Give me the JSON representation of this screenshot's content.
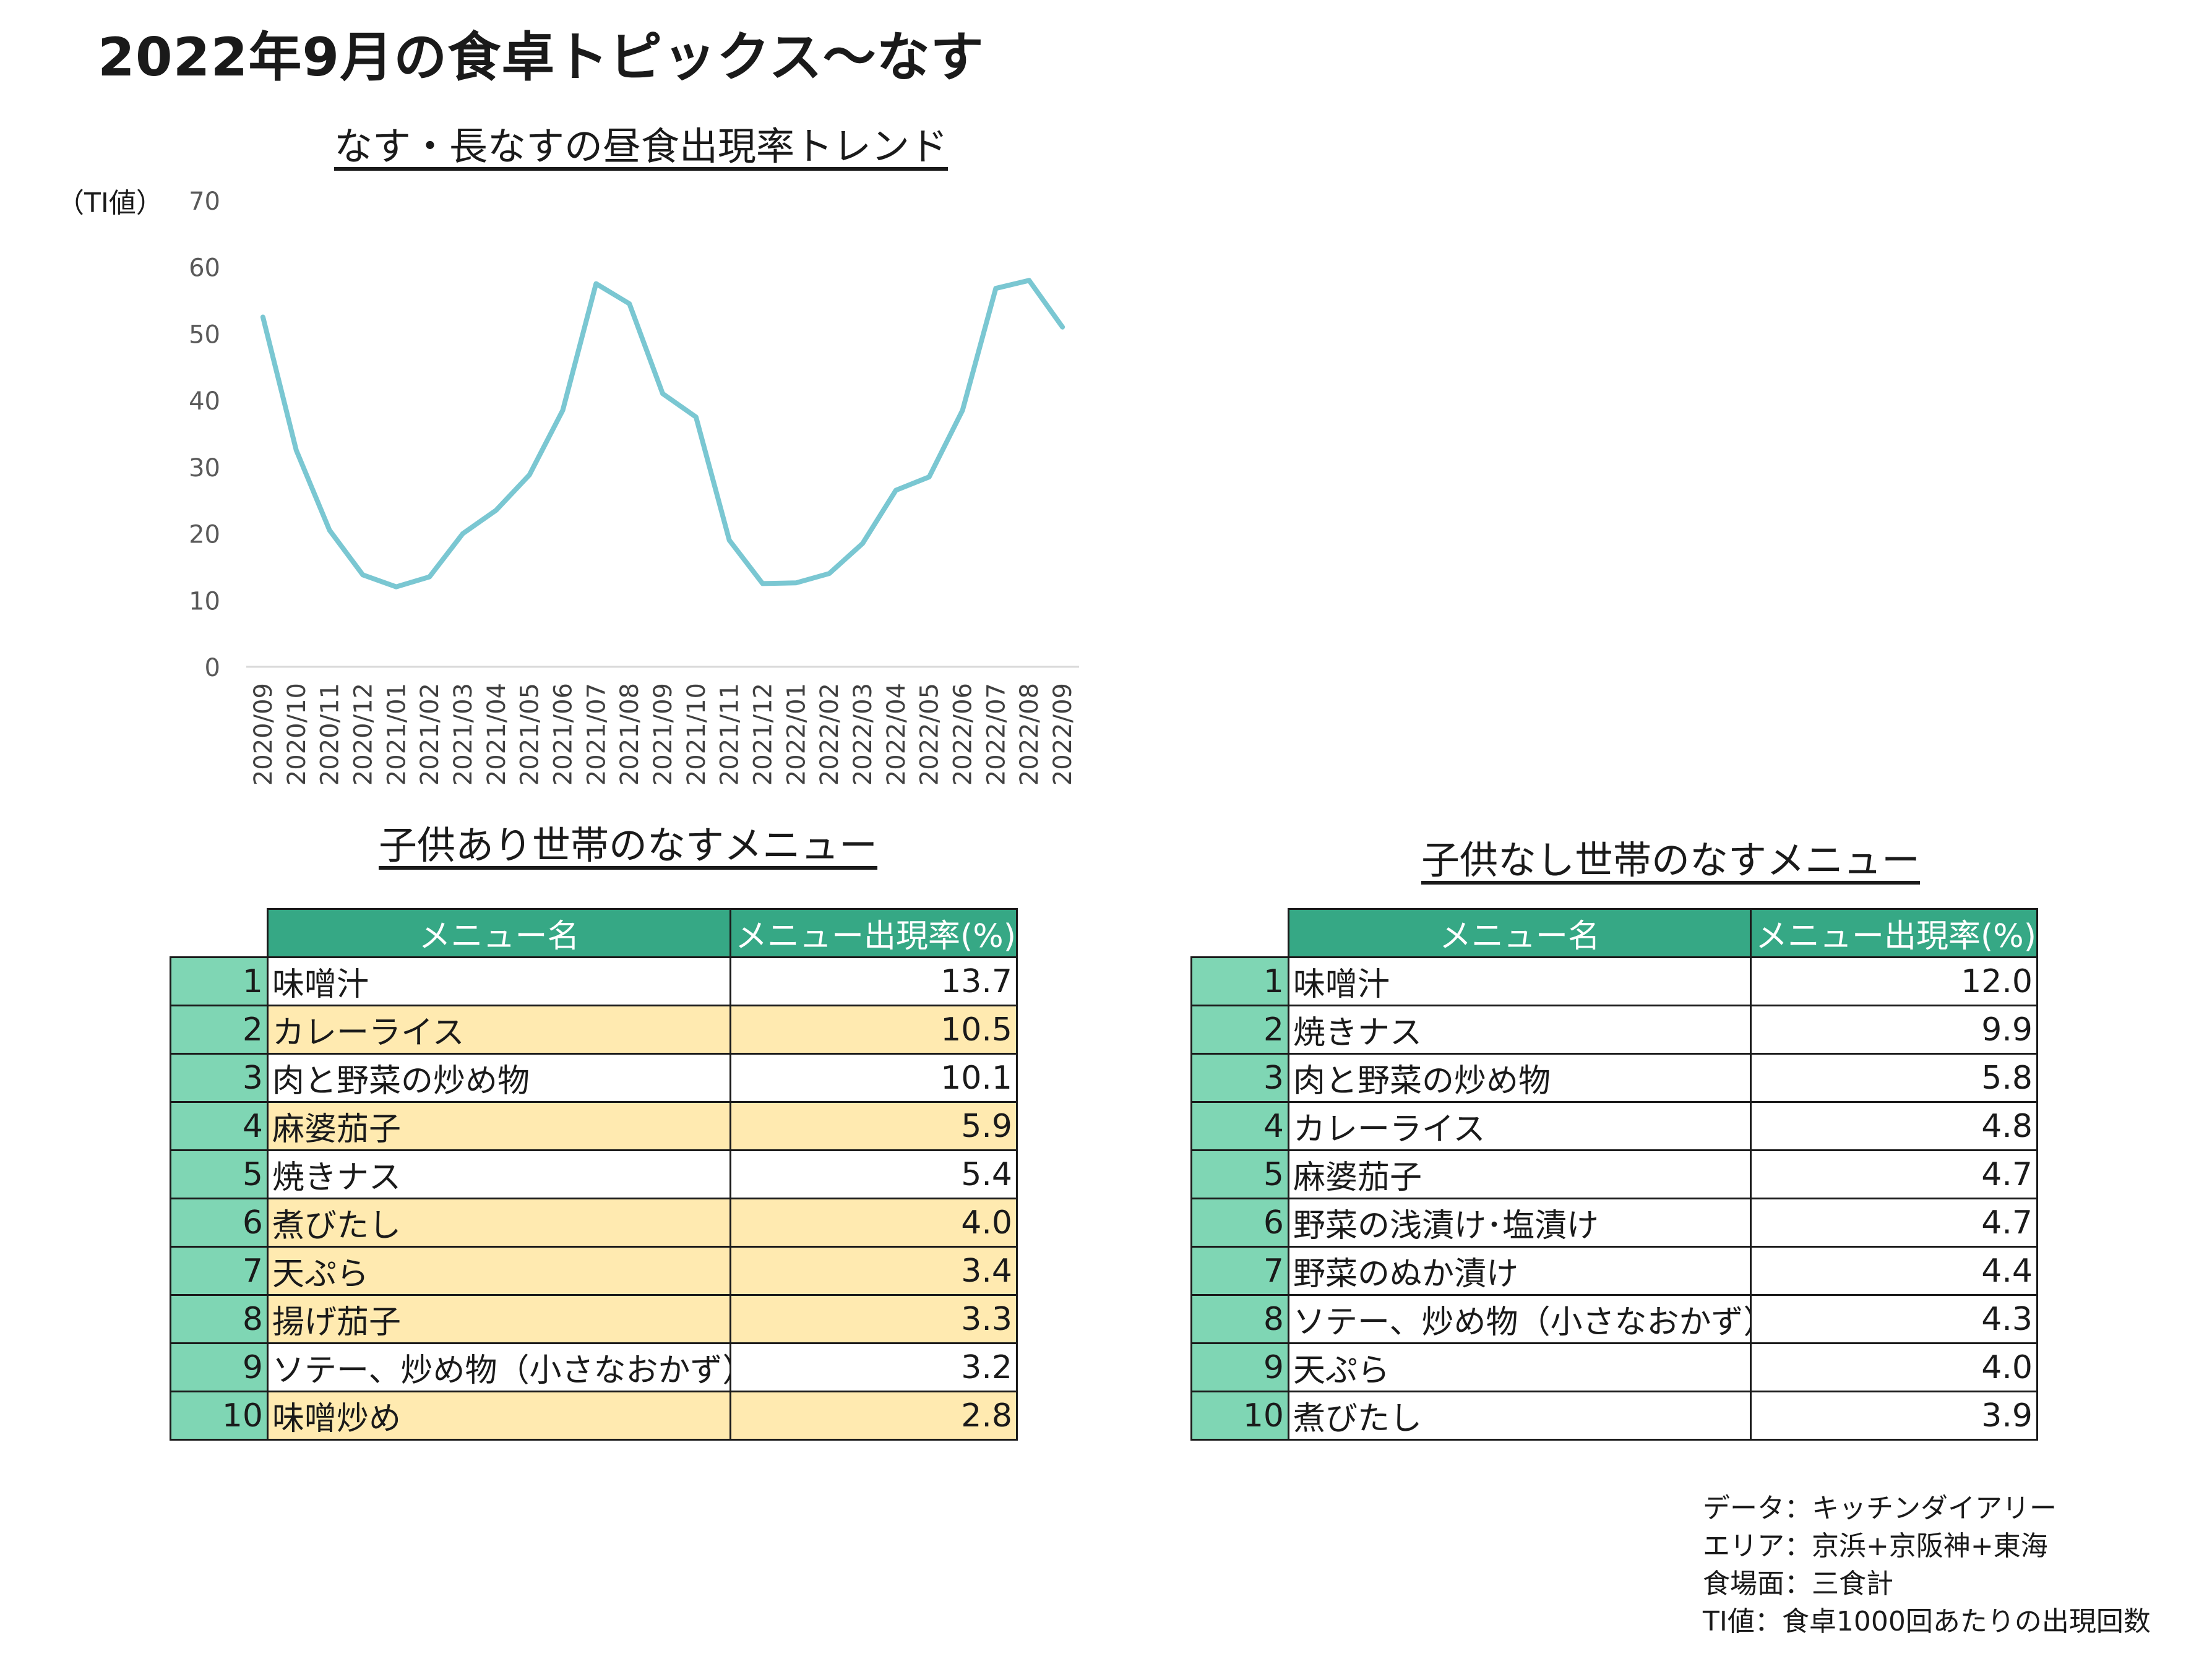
{
  "page": {
    "title": "2022年9月の食卓トピックス〜なす"
  },
  "chart_data": {
    "type": "line",
    "title": "なす・長なすの昼食出現率トレンド",
    "ylabel": "（TI値）",
    "xlabel": "",
    "ylim": [
      0,
      70
    ],
    "yticks": [
      0,
      10,
      20,
      30,
      40,
      50,
      60,
      70
    ],
    "grid": false,
    "legend": "none",
    "x": [
      "2020/09",
      "2020/10",
      "2020/11",
      "2020/12",
      "2021/01",
      "2021/02",
      "2021/03",
      "2021/04",
      "2021/05",
      "2021/06",
      "2021/07",
      "2021/08",
      "2021/09",
      "2021/10",
      "2021/11",
      "2021/12",
      "2022/01",
      "2022/02",
      "2022/03",
      "2022/04",
      "2022/05",
      "2022/06",
      "2022/07",
      "2022/08",
      "2022/09"
    ],
    "series": [
      {
        "values": [
          52.5,
          32.5,
          20.5,
          13.8,
          12.0,
          13.5,
          20.0,
          23.5,
          28.8,
          38.5,
          57.5,
          54.5,
          41.0,
          37.5,
          19.0,
          12.5,
          12.6,
          14.0,
          18.5,
          26.5,
          28.5,
          38.5,
          56.8,
          58.0,
          51.0
        ],
        "color": "#7ac7d2"
      }
    ]
  },
  "tables": {
    "with_children": {
      "title": "子供あり世帯のなすメニュー",
      "col_name": "メニュー名",
      "col_rate": "メニュー出現率(%)",
      "rows": [
        {
          "rank": "1",
          "name": "味噌汁",
          "rate": "13.7",
          "highlight": false
        },
        {
          "rank": "2",
          "name": "カレーライス",
          "rate": "10.5",
          "highlight": true
        },
        {
          "rank": "3",
          "name": "肉と野菜の炒め物",
          "rate": "10.1",
          "highlight": false
        },
        {
          "rank": "4",
          "name": "麻婆茄子",
          "rate": "5.9",
          "highlight": true
        },
        {
          "rank": "5",
          "name": "焼きナス",
          "rate": "5.4",
          "highlight": false
        },
        {
          "rank": "6",
          "name": "煮びたし",
          "rate": "4.0",
          "highlight": true
        },
        {
          "rank": "7",
          "name": "天ぷら",
          "rate": "3.4",
          "highlight": true
        },
        {
          "rank": "8",
          "name": "揚げ茄子",
          "rate": "3.3",
          "highlight": true
        },
        {
          "rank": "9",
          "name": "ソテー、炒め物（小さなおかず）",
          "rate": "3.2",
          "highlight": false
        },
        {
          "rank": "10",
          "name": "味噌炒め",
          "rate": "2.8",
          "highlight": true
        }
      ]
    },
    "without_children": {
      "title": "子供なし世帯のなすメニュー",
      "col_name": "メニュー名",
      "col_rate": "メニュー出現率(%)",
      "rows": [
        {
          "rank": "1",
          "name": "味噌汁",
          "rate": "12.0",
          "highlight": false
        },
        {
          "rank": "2",
          "name": "焼きナス",
          "rate": "9.9",
          "highlight": false
        },
        {
          "rank": "3",
          "name": "肉と野菜の炒め物",
          "rate": "5.8",
          "highlight": false
        },
        {
          "rank": "4",
          "name": "カレーライス",
          "rate": "4.8",
          "highlight": false
        },
        {
          "rank": "5",
          "name": "麻婆茄子",
          "rate": "4.7",
          "highlight": false
        },
        {
          "rank": "6",
          "name": "野菜の浅漬け･塩漬け",
          "rate": "4.7",
          "highlight": false
        },
        {
          "rank": "7",
          "name": "野菜のぬか漬け",
          "rate": "4.4",
          "highlight": false
        },
        {
          "rank": "8",
          "name": "ソテー、炒め物（小さなおかず）",
          "rate": "4.3",
          "highlight": false
        },
        {
          "rank": "9",
          "name": "天ぷら",
          "rate": "4.0",
          "highlight": false
        },
        {
          "rank": "10",
          "name": "煮びたし",
          "rate": "3.9",
          "highlight": false
        }
      ]
    }
  },
  "footnote": {
    "lines": [
      "データ：キッチンダイアリー",
      "エリア：京浜+京阪神+東海",
      "食場面：三食計",
      "TI値：食卓1000回あたりの出現回数"
    ]
  },
  "colors": {
    "header_bg": "#36a885",
    "rank_bg": "#7fd6b4",
    "highlight_bg": "#ffeab0",
    "line": "#7ac7d2"
  }
}
